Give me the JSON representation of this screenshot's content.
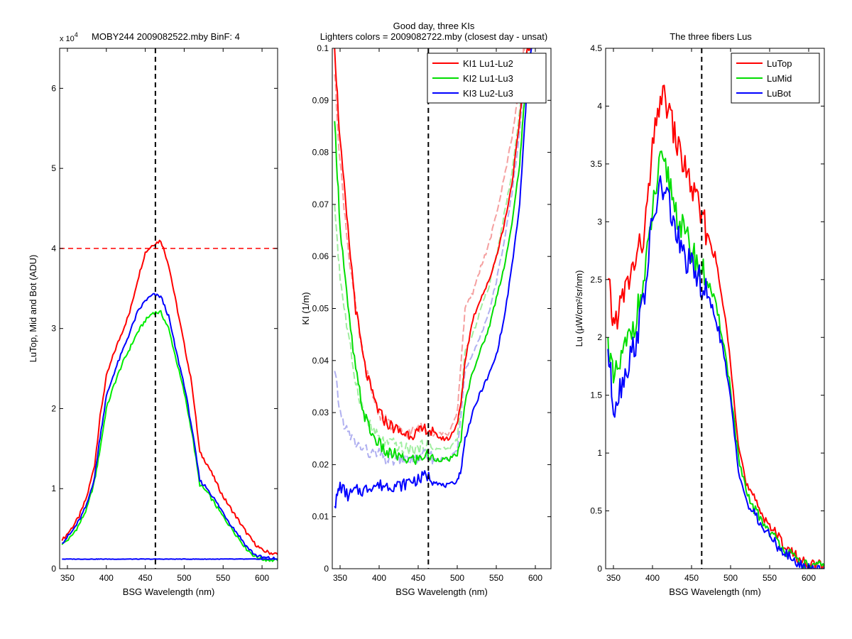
{
  "figure": {
    "panel_titles": [
      "x 10⁴   MOBY244  2009082522.mby BinF: 4",
      "Good day, three KIs",
      "The three fibers Lus"
    ],
    "center_subtitle": "Lighters colors = 2009082722.mby (closest day - unsat)"
  },
  "chart_data": [
    {
      "type": "line",
      "title": "MOBY244  2009082522.mby BinF: 4",
      "multiplier_label": "x 10",
      "multiplier_exponent": "4",
      "xlabel": "BSG Wavelength (nm)",
      "ylabel": "LuTop, Mid and Bot (ADU)",
      "xlim": [
        340,
        620
      ],
      "ylim": [
        0,
        6.5
      ],
      "xticks": [
        350,
        400,
        450,
        500,
        550,
        600
      ],
      "yticks": [
        0,
        1,
        2,
        3,
        4,
        5,
        6
      ],
      "grid": false,
      "reference_lines": {
        "vertical_dashed_x": 463,
        "horizontal_dashed_y": 4
      },
      "colors": {
        "LuTop": "#ff0000",
        "LuMid": "#00ee00",
        "LuBot": "#0000ff"
      },
      "x": [
        343,
        355,
        365,
        375,
        385,
        392,
        400,
        410,
        420,
        430,
        440,
        450,
        460,
        470,
        480,
        490,
        500,
        510,
        520,
        530,
        540,
        550,
        560,
        570,
        580,
        590,
        600,
        610,
        620
      ],
      "series": [
        {
          "values": [
            0.35,
            0.5,
            0.65,
            0.9,
            1.3,
            1.9,
            2.4,
            2.7,
            2.95,
            3.2,
            3.6,
            3.95,
            4.05,
            4.1,
            3.8,
            3.3,
            2.8,
            2.3,
            1.45,
            1.3,
            1.1,
            0.9,
            0.75,
            0.6,
            0.45,
            0.32,
            0.23,
            0.2,
            0.18
          ]
        },
        {
          "values": [
            0.3,
            0.4,
            0.55,
            0.75,
            1.1,
            1.5,
            2.0,
            2.3,
            2.55,
            2.75,
            2.95,
            3.1,
            3.2,
            3.2,
            3.0,
            2.6,
            2.2,
            1.7,
            1.05,
            0.95,
            0.8,
            0.65,
            0.52,
            0.38,
            0.25,
            0.16,
            0.12,
            0.11,
            0.1
          ]
        },
        {
          "values": [
            0.32,
            0.45,
            0.6,
            0.8,
            1.15,
            1.65,
            2.15,
            2.45,
            2.7,
            2.95,
            3.2,
            3.35,
            3.42,
            3.4,
            3.15,
            2.7,
            2.3,
            1.75,
            1.1,
            1.0,
            0.85,
            0.7,
            0.55,
            0.42,
            0.28,
            0.18,
            0.14,
            0.13,
            0.12
          ]
        },
        {
          "values": [
            0.12,
            0.12,
            0.12,
            0.12,
            0.12,
            0.12,
            0.12,
            0.12,
            0.12,
            0.12,
            0.12,
            0.12,
            0.12,
            0.12,
            0.12,
            0.12,
            0.12,
            0.12,
            0.12,
            0.12,
            0.12,
            0.12,
            0.12,
            0.12,
            0.12,
            0.12,
            0.12,
            0.12,
            0.12
          ]
        }
      ]
    },
    {
      "type": "line",
      "title": "Good day, three KIs",
      "subtitle": "Lighters colors = 2009082722.mby (closest day - unsat)",
      "xlabel": "BSG Wavelength (nm)",
      "ylabel": "KI (1/m)",
      "xlim": [
        340,
        620
      ],
      "ylim": [
        0,
        0.1
      ],
      "xticks": [
        350,
        400,
        450,
        500,
        550,
        600
      ],
      "yticks": [
        0,
        0.01,
        0.02,
        0.03,
        0.04,
        0.05,
        0.06,
        0.07,
        0.08,
        0.09,
        0.1
      ],
      "ytick_labels": [
        "0",
        "0.01",
        "0.02",
        "0.03",
        "0.04",
        "0.05",
        "0.06",
        "0.07",
        "0.08",
        "0.09",
        "0.1"
      ],
      "grid": false,
      "legend_position": "top-right",
      "reference_lines": {
        "vertical_dashed_x": 463
      },
      "x": [
        343,
        350,
        360,
        370,
        380,
        390,
        400,
        410,
        420,
        430,
        440,
        450,
        460,
        470,
        480,
        490,
        500,
        505,
        510,
        520,
        530,
        540,
        550,
        560,
        570,
        580,
        585,
        590,
        595
      ],
      "series": [
        {
          "name": "KI1 Lu1-Lu2",
          "color": "#ff0000",
          "values": [
            0.1,
            0.082,
            0.065,
            0.05,
            0.04,
            0.034,
            0.03,
            0.028,
            0.027,
            0.026,
            0.026,
            0.026,
            0.027,
            0.026,
            0.025,
            0.025,
            0.028,
            0.032,
            0.04,
            0.048,
            0.052,
            0.055,
            0.06,
            0.066,
            0.074,
            0.086,
            0.095,
            0.1,
            0.1
          ]
        },
        {
          "name": "KI2 Lu1-Lu3",
          "color": "#00dd00",
          "values": [
            0.086,
            0.066,
            0.05,
            0.038,
            0.03,
            0.026,
            0.024,
            0.022,
            0.022,
            0.021,
            0.021,
            0.021,
            0.022,
            0.021,
            0.021,
            0.021,
            0.022,
            0.025,
            0.032,
            0.038,
            0.042,
            0.046,
            0.052,
            0.058,
            0.066,
            0.078,
            0.088,
            0.097,
            0.1
          ]
        },
        {
          "name": "KI3 Lu2-Lu3",
          "color": "#0000ff",
          "values": [
            0.012,
            0.016,
            0.014,
            0.015,
            0.015,
            0.016,
            0.016,
            0.016,
            0.016,
            0.016,
            0.017,
            0.017,
            0.018,
            0.017,
            0.016,
            0.016,
            0.017,
            0.019,
            0.025,
            0.03,
            0.034,
            0.037,
            0.041,
            0.048,
            0.058,
            0.07,
            0.082,
            0.094,
            0.1
          ]
        },
        {
          "lighter": true,
          "color": "#f5a0a0",
          "values": [
            0.095,
            0.078,
            0.062,
            0.05,
            0.04,
            0.034,
            0.03,
            0.028,
            0.027,
            0.026,
            0.026,
            0.027,
            0.027,
            0.026,
            0.026,
            0.026,
            0.03,
            0.04,
            0.05,
            0.053,
            0.058,
            0.062,
            0.068,
            0.075,
            0.083,
            0.093,
            0.1,
            0.1,
            0.1
          ]
        },
        {
          "lighter": true,
          "color": "#a0eea0",
          "values": [
            0.07,
            0.056,
            0.045,
            0.036,
            0.03,
            0.027,
            0.025,
            0.024,
            0.024,
            0.023,
            0.023,
            0.023,
            0.024,
            0.023,
            0.023,
            0.023,
            0.025,
            0.032,
            0.042,
            0.045,
            0.05,
            0.054,
            0.06,
            0.068,
            0.076,
            0.088,
            0.096,
            0.1,
            0.1
          ]
        },
        {
          "lighter": true,
          "color": "#b0b0f0",
          "values": [
            0.038,
            0.03,
            0.026,
            0.024,
            0.023,
            0.022,
            0.022,
            0.021,
            0.021,
            0.021,
            0.021,
            0.021,
            0.022,
            0.021,
            0.021,
            0.021,
            0.023,
            0.03,
            0.038,
            0.041,
            0.045,
            0.049,
            0.055,
            0.063,
            0.072,
            0.084,
            0.093,
            0.1,
            0.1
          ]
        }
      ]
    },
    {
      "type": "line",
      "title": "The three fibers Lus",
      "xlabel": "BSG Wavelength (nm)",
      "ylabel": "Lu (μW/cm²/sr/nm)",
      "xlim": [
        340,
        620
      ],
      "ylim": [
        0,
        4.5
      ],
      "xticks": [
        350,
        400,
        450,
        500,
        550,
        600
      ],
      "yticks": [
        0,
        0.5,
        1,
        1.5,
        2,
        2.5,
        3,
        3.5,
        4,
        4.5
      ],
      "ytick_labels": [
        "0",
        "0.5",
        "1",
        "1.5",
        "2",
        "2.5",
        "3",
        "3.5",
        "4",
        "4.5"
      ],
      "grid": false,
      "legend_position": "top-right",
      "reference_lines": {
        "vertical_dashed_x": 463
      },
      "x": [
        343,
        350,
        360,
        370,
        380,
        390,
        400,
        410,
        420,
        430,
        440,
        450,
        460,
        470,
        480,
        490,
        500,
        510,
        520,
        530,
        540,
        550,
        560,
        570,
        580,
        590,
        600,
        610,
        620
      ],
      "series": [
        {
          "name": "LuTop",
          "color": "#ff0000",
          "values": [
            2.5,
            2.1,
            2.3,
            2.5,
            2.7,
            2.9,
            3.6,
            4.1,
            4.0,
            3.7,
            3.5,
            3.3,
            3.1,
            2.9,
            2.7,
            2.3,
            1.8,
            1.1,
            0.72,
            0.6,
            0.48,
            0.38,
            0.28,
            0.2,
            0.13,
            0.07,
            0.04,
            0.03,
            0.03
          ]
        },
        {
          "name": "LuMid",
          "color": "#00dd00",
          "values": [
            2.0,
            1.6,
            1.8,
            2.0,
            2.2,
            2.5,
            3.1,
            3.5,
            3.4,
            3.1,
            2.9,
            2.75,
            2.6,
            2.5,
            2.3,
            2.0,
            1.55,
            0.95,
            0.65,
            0.52,
            0.42,
            0.32,
            0.24,
            0.16,
            0.1,
            0.05,
            0.02,
            0.02,
            0.02
          ]
        },
        {
          "name": "LuBot",
          "color": "#0000ff",
          "values": [
            1.9,
            1.4,
            1.6,
            1.8,
            2.0,
            2.4,
            3.0,
            3.3,
            3.2,
            2.9,
            2.7,
            2.6,
            2.5,
            2.35,
            2.2,
            1.9,
            1.45,
            0.88,
            0.58,
            0.47,
            0.37,
            0.28,
            0.2,
            0.13,
            0.07,
            0.03,
            0.01,
            0.01,
            0.01
          ]
        }
      ]
    }
  ]
}
